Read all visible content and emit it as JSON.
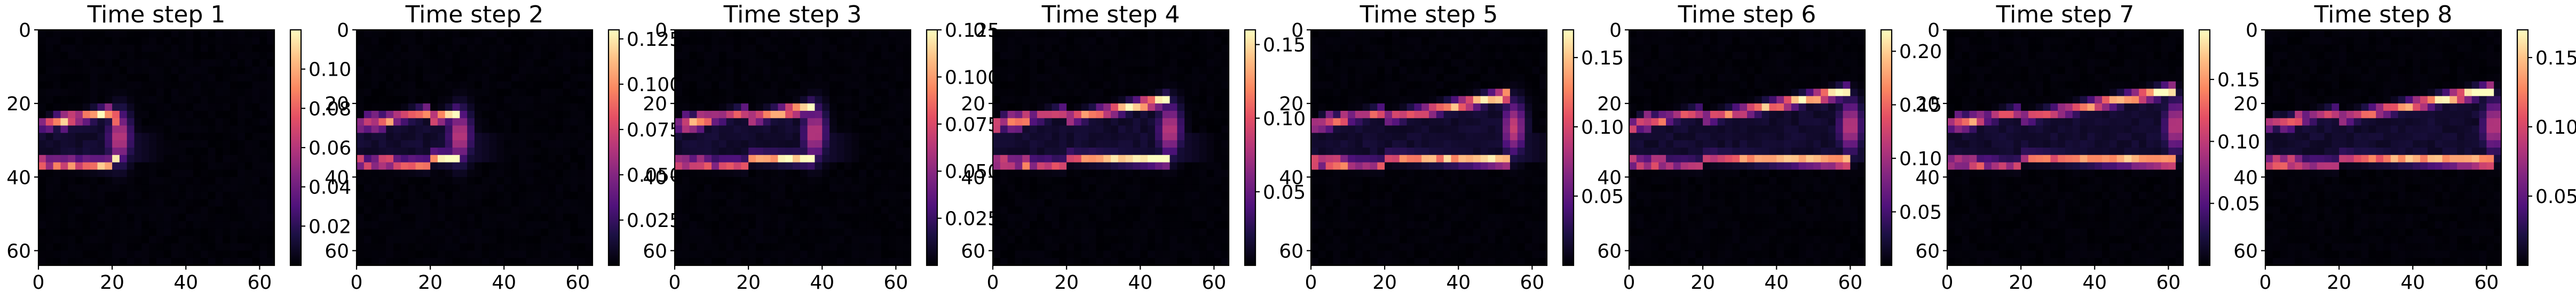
{
  "chart_data": [
    {
      "type": "heatmap",
      "title": "Time step 1",
      "xticks": [
        "0",
        "20",
        "40",
        "60"
      ],
      "yticks": [
        "0",
        "20",
        "40",
        "60"
      ],
      "colorbar": {
        "min": 0.0,
        "max": 0.12,
        "ticks": [
          {
            "value": 0.02,
            "label": "0.02"
          },
          {
            "value": 0.04,
            "label": "0.04"
          },
          {
            "value": 0.06,
            "label": "0.06"
          },
          {
            "value": 0.08,
            "label": "0.08"
          },
          {
            "value": 0.1,
            "label": "0.10"
          }
        ]
      },
      "front_x": 22,
      "colormap": "magma",
      "grid_size": 64
    },
    {
      "type": "heatmap",
      "title": "Time step 2",
      "xticks": [
        "0",
        "20",
        "40",
        "60"
      ],
      "yticks": [
        "0",
        "20",
        "40",
        "60"
      ],
      "colorbar": {
        "min": 0.0,
        "max": 0.13,
        "ticks": [
          {
            "value": 0.025,
            "label": "0.025"
          },
          {
            "value": 0.05,
            "label": "0.050"
          },
          {
            "value": 0.075,
            "label": "0.075"
          },
          {
            "value": 0.1,
            "label": "0.100"
          },
          {
            "value": 0.125,
            "label": "0.125"
          }
        ]
      },
      "front_x": 28,
      "colormap": "magma",
      "grid_size": 64
    },
    {
      "type": "heatmap",
      "title": "Time step 3",
      "xticks": [
        "0",
        "20",
        "40",
        "60"
      ],
      "yticks": [
        "0",
        "20",
        "40",
        "60"
      ],
      "colorbar": {
        "min": 0.0,
        "max": 0.125,
        "ticks": [
          {
            "value": 0.025,
            "label": "0.025"
          },
          {
            "value": 0.05,
            "label": "0.050"
          },
          {
            "value": 0.075,
            "label": "0.075"
          },
          {
            "value": 0.1,
            "label": "0.100"
          },
          {
            "value": 0.125,
            "label": "0.125"
          }
        ]
      },
      "front_x": 38,
      "colormap": "magma",
      "grid_size": 64
    },
    {
      "type": "heatmap",
      "title": "Time step 4",
      "xticks": [
        "0",
        "20",
        "40",
        "60"
      ],
      "yticks": [
        "0",
        "20",
        "40",
        "60"
      ],
      "colorbar": {
        "min": 0.0,
        "max": 0.16,
        "ticks": [
          {
            "value": 0.05,
            "label": "0.05"
          },
          {
            "value": 0.1,
            "label": "0.10"
          },
          {
            "value": 0.15,
            "label": "0.15"
          }
        ]
      },
      "front_x": 48,
      "colormap": "magma",
      "grid_size": 64
    },
    {
      "type": "heatmap",
      "title": "Time step 5",
      "xticks": [
        "0",
        "20",
        "40",
        "60"
      ],
      "yticks": [
        "0",
        "20",
        "40",
        "60"
      ],
      "colorbar": {
        "min": 0.0,
        "max": 0.17,
        "ticks": [
          {
            "value": 0.05,
            "label": "0.05"
          },
          {
            "value": 0.1,
            "label": "0.10"
          },
          {
            "value": 0.15,
            "label": "0.15"
          }
        ]
      },
      "front_x": 55,
      "colormap": "magma",
      "grid_size": 64
    },
    {
      "type": "heatmap",
      "title": "Time step 6",
      "xticks": [
        "0",
        "20",
        "40",
        "60"
      ],
      "yticks": [
        "0",
        "20",
        "40",
        "60"
      ],
      "colorbar": {
        "min": 0.0,
        "max": 0.22,
        "ticks": [
          {
            "value": 0.05,
            "label": "0.05"
          },
          {
            "value": 0.1,
            "label": "0.10"
          },
          {
            "value": 0.15,
            "label": "0.15"
          },
          {
            "value": 0.2,
            "label": "0.20"
          }
        ]
      },
      "front_x": 60,
      "colormap": "magma",
      "grid_size": 64
    },
    {
      "type": "heatmap",
      "title": "Time step 7",
      "xticks": [
        "0",
        "20",
        "40",
        "60"
      ],
      "yticks": [
        "0",
        "20",
        "40",
        "60"
      ],
      "colorbar": {
        "min": 0.0,
        "max": 0.19,
        "ticks": [
          {
            "value": 0.05,
            "label": "0.05"
          },
          {
            "value": 0.1,
            "label": "0.10"
          },
          {
            "value": 0.15,
            "label": "0.15"
          }
        ]
      },
      "front_x": 62,
      "colormap": "magma",
      "grid_size": 64
    },
    {
      "type": "heatmap",
      "title": "Time step 8",
      "xticks": [
        "0",
        "20",
        "40",
        "60"
      ],
      "yticks": [
        "0",
        "20",
        "40",
        "60"
      ],
      "colorbar": {
        "min": 0.0,
        "max": 0.17,
        "ticks": [
          {
            "value": 0.05,
            "label": "0.05"
          },
          {
            "value": 0.1,
            "label": "0.10"
          },
          {
            "value": 0.15,
            "label": "0.15"
          }
        ]
      },
      "front_x": 62,
      "colormap": "magma",
      "grid_size": 64
    }
  ]
}
